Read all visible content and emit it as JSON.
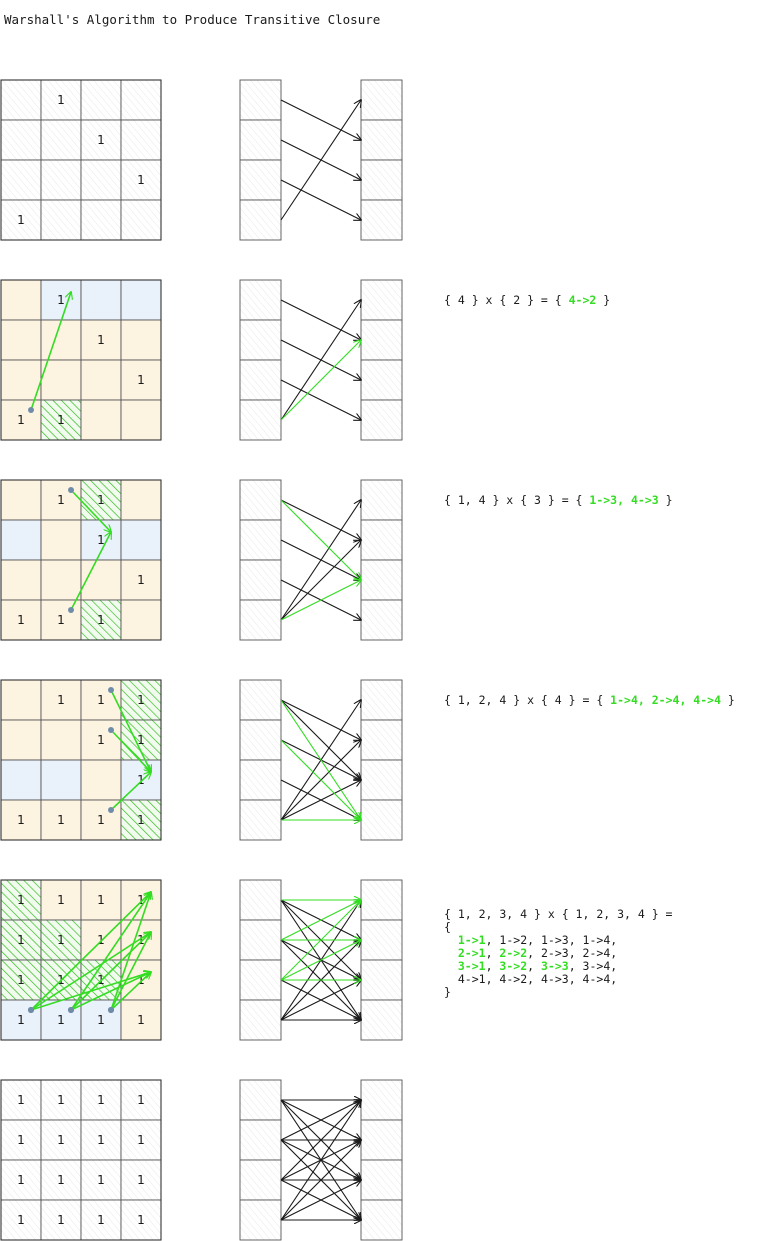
{
  "title": "Warshall's Algorithm to Produce Transitive Closure",
  "colors": {
    "ink": "#1a1a1a",
    "grid_line": "#555555",
    "highlight_green": "#33dd22",
    "hatch_green": "#2fb81c",
    "col_tint": "#fdf3e1",
    "row_tint": "#e9f1fb",
    "dot": "#6f8ca8"
  },
  "cell_value": "1",
  "steps": [
    {
      "id": "initial",
      "matrix": [
        [
          0,
          1,
          0,
          0
        ],
        [
          0,
          0,
          1,
          0
        ],
        [
          0,
          0,
          0,
          1
        ],
        [
          1,
          0,
          0,
          0
        ]
      ],
      "pivot": null,
      "new_cells": [],
      "grid_arrows": [],
      "edges": [
        [
          1,
          2
        ],
        [
          2,
          3
        ],
        [
          3,
          4
        ],
        [
          4,
          1
        ]
      ],
      "new_edges": []
    },
    {
      "id": "k1",
      "matrix": [
        [
          0,
          1,
          0,
          0
        ],
        [
          0,
          0,
          1,
          0
        ],
        [
          0,
          0,
          0,
          1
        ],
        [
          1,
          1,
          0,
          0
        ]
      ],
      "pivot": 1,
      "new_cells": [
        [
          4,
          2
        ]
      ],
      "grid_arrows": [
        [
          4,
          1,
          1,
          2
        ]
      ],
      "edges": [
        [
          1,
          2
        ],
        [
          2,
          3
        ],
        [
          3,
          4
        ],
        [
          4,
          1
        ]
      ],
      "new_edges": [
        [
          4,
          2
        ]
      ],
      "equation": {
        "prefix": "{ 4 } x { 2 } = { ",
        "results": [
          "4->2"
        ],
        "suffix": " }"
      }
    },
    {
      "id": "k2",
      "matrix": [
        [
          0,
          1,
          1,
          0
        ],
        [
          0,
          0,
          1,
          0
        ],
        [
          0,
          0,
          0,
          1
        ],
        [
          1,
          1,
          1,
          0
        ]
      ],
      "pivot": 2,
      "new_cells": [
        [
          1,
          3
        ],
        [
          4,
          3
        ]
      ],
      "grid_arrows": [
        [
          1,
          2,
          2,
          3
        ],
        [
          4,
          2,
          2,
          3
        ]
      ],
      "edges": [
        [
          1,
          2
        ],
        [
          2,
          3
        ],
        [
          3,
          4
        ],
        [
          4,
          1
        ],
        [
          4,
          2
        ]
      ],
      "new_edges": [
        [
          1,
          3
        ],
        [
          4,
          3
        ]
      ],
      "equation": {
        "prefix": "{ 1, 4 } x { 3 } = { ",
        "results": [
          "1->3",
          "4->3"
        ],
        "suffix": " }"
      }
    },
    {
      "id": "k3",
      "matrix": [
        [
          0,
          1,
          1,
          1
        ],
        [
          0,
          0,
          1,
          1
        ],
        [
          0,
          0,
          0,
          1
        ],
        [
          1,
          1,
          1,
          1
        ]
      ],
      "pivot": 3,
      "new_cells": [
        [
          1,
          4
        ],
        [
          2,
          4
        ],
        [
          4,
          4
        ]
      ],
      "grid_arrows": [
        [
          1,
          3,
          3,
          4
        ],
        [
          2,
          3,
          3,
          4
        ],
        [
          4,
          3,
          3,
          4
        ]
      ],
      "edges": [
        [
          1,
          2
        ],
        [
          2,
          3
        ],
        [
          3,
          4
        ],
        [
          4,
          1
        ],
        [
          4,
          2
        ],
        [
          1,
          3
        ],
        [
          4,
          3
        ]
      ],
      "new_edges": [
        [
          1,
          4
        ],
        [
          2,
          4
        ],
        [
          4,
          4
        ]
      ],
      "equation": {
        "prefix": "{ 1, 2, 4 } x { 4 } = { ",
        "results": [
          "1->4",
          "2->4",
          "4->4"
        ],
        "suffix": " }"
      }
    },
    {
      "id": "k4",
      "matrix": [
        [
          1,
          1,
          1,
          1
        ],
        [
          1,
          1,
          1,
          1
        ],
        [
          1,
          1,
          1,
          1
        ],
        [
          1,
          1,
          1,
          1
        ]
      ],
      "pivot": 4,
      "new_cells": [
        [
          1,
          1
        ],
        [
          2,
          1
        ],
        [
          2,
          2
        ],
        [
          3,
          1
        ],
        [
          3,
          2
        ],
        [
          3,
          3
        ]
      ],
      "grid_arrows": [
        [
          4,
          1,
          1,
          4
        ],
        [
          4,
          1,
          2,
          4
        ],
        [
          4,
          1,
          3,
          4
        ],
        [
          4,
          2,
          1,
          4
        ],
        [
          4,
          2,
          2,
          4
        ],
        [
          4,
          2,
          3,
          4
        ],
        [
          4,
          3,
          1,
          4
        ],
        [
          4,
          3,
          2,
          4
        ],
        [
          4,
          3,
          3,
          4
        ]
      ],
      "edges": [
        [
          1,
          2
        ],
        [
          2,
          3
        ],
        [
          3,
          4
        ],
        [
          4,
          1
        ],
        [
          4,
          2
        ],
        [
          1,
          3
        ],
        [
          4,
          3
        ],
        [
          1,
          4
        ],
        [
          2,
          4
        ],
        [
          4,
          4
        ]
      ],
      "new_edges": [
        [
          1,
          1
        ],
        [
          2,
          1
        ],
        [
          2,
          2
        ],
        [
          3,
          1
        ],
        [
          3,
          2
        ],
        [
          3,
          3
        ]
      ],
      "equation": {
        "header": "{ 1, 2, 3, 4 } x { 1, 2, 3, 4 } =",
        "open": "{",
        "rows": [
          [
            {
              "t": "1->1",
              "hl": true
            },
            {
              "t": "1->2",
              "hl": false
            },
            {
              "t": "1->3",
              "hl": false
            },
            {
              "t": "1->4",
              "hl": false
            }
          ],
          [
            {
              "t": "2->1",
              "hl": true
            },
            {
              "t": "2->2",
              "hl": true
            },
            {
              "t": "2->3",
              "hl": false
            },
            {
              "t": "2->4",
              "hl": false
            }
          ],
          [
            {
              "t": "3->1",
              "hl": true
            },
            {
              "t": "3->2",
              "hl": true
            },
            {
              "t": "3->3",
              "hl": true
            },
            {
              "t": "3->4",
              "hl": false
            }
          ],
          [
            {
              "t": "4->1",
              "hl": false
            },
            {
              "t": "4->2",
              "hl": false
            },
            {
              "t": "4->3",
              "hl": false
            },
            {
              "t": "4->4",
              "hl": false
            }
          ]
        ],
        "close": "}"
      }
    },
    {
      "id": "final",
      "matrix": [
        [
          1,
          1,
          1,
          1
        ],
        [
          1,
          1,
          1,
          1
        ],
        [
          1,
          1,
          1,
          1
        ],
        [
          1,
          1,
          1,
          1
        ]
      ],
      "pivot": null,
      "new_cells": [],
      "grid_arrows": [],
      "edges": [
        [
          1,
          1
        ],
        [
          1,
          2
        ],
        [
          1,
          3
        ],
        [
          1,
          4
        ],
        [
          2,
          1
        ],
        [
          2,
          2
        ],
        [
          2,
          3
        ],
        [
          2,
          4
        ],
        [
          3,
          1
        ],
        [
          3,
          2
        ],
        [
          3,
          3
        ],
        [
          3,
          4
        ],
        [
          4,
          1
        ],
        [
          4,
          2
        ],
        [
          4,
          3
        ],
        [
          4,
          4
        ]
      ],
      "new_edges": []
    }
  ]
}
